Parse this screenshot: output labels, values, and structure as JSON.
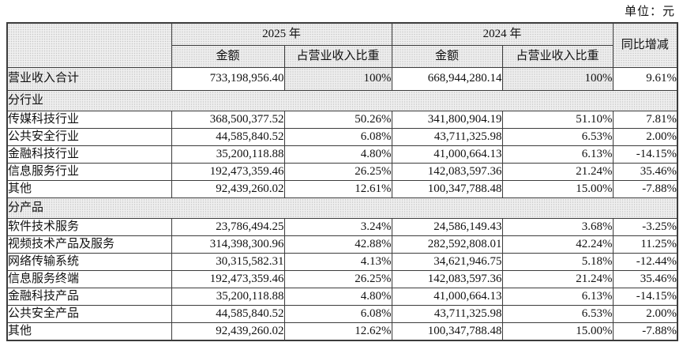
{
  "unit_label": "单位：元",
  "colors": {
    "header_fill": "#e3e3e3",
    "border": "#3c3c3c",
    "background": "#ffffff",
    "text": "#111111"
  },
  "table": {
    "header": {
      "y2025": "2025 年",
      "y2024": "2024 年",
      "yoy": "同比增减",
      "amount": "金额",
      "ratio": "占营业收入比重"
    },
    "rows": [
      {
        "type": "total",
        "label": "营业收入合计",
        "a2025": "733,198,956.40",
        "r2025": "100%",
        "a2024": "668,944,280.14",
        "r2024": "100%",
        "yoy": "9.61%"
      },
      {
        "type": "section",
        "label": "分行业"
      },
      {
        "type": "data",
        "label": "传媒科技行业",
        "a2025": "368,500,377.52",
        "r2025": "50.26%",
        "a2024": "341,800,904.19",
        "r2024": "51.10%",
        "yoy": "7.81%"
      },
      {
        "type": "data",
        "label": "公共安全行业",
        "a2025": "44,585,840.52",
        "r2025": "6.08%",
        "a2024": "43,711,325.98",
        "r2024": "6.53%",
        "yoy": "2.00%"
      },
      {
        "type": "data",
        "label": "金融科技行业",
        "a2025": "35,200,118.88",
        "r2025": "4.80%",
        "a2024": "41,000,664.13",
        "r2024": "6.13%",
        "yoy": "-14.15%"
      },
      {
        "type": "data",
        "label": "信息服务行业",
        "a2025": "192,473,359.46",
        "r2025": "26.25%",
        "a2024": "142,083,597.36",
        "r2024": "21.24%",
        "yoy": "35.46%"
      },
      {
        "type": "data",
        "label": "其他",
        "a2025": "92,439,260.02",
        "r2025": "12.61%",
        "a2024": "100,347,788.48",
        "r2024": "15.00%",
        "yoy": "-7.88%"
      },
      {
        "type": "section",
        "label": "分产品"
      },
      {
        "type": "data",
        "label": "软件技术服务",
        "a2025": "23,786,494.25",
        "r2025": "3.24%",
        "a2024": "24,586,149.43",
        "r2024": "3.68%",
        "yoy": "-3.25%"
      },
      {
        "type": "data",
        "label": "视频技术产品及服务",
        "a2025": "314,398,300.96",
        "r2025": "42.88%",
        "a2024": "282,592,808.01",
        "r2024": "42.24%",
        "yoy": "11.25%"
      },
      {
        "type": "data",
        "label": "网络传输系统",
        "a2025": "30,315,582.31",
        "r2025": "4.13%",
        "a2024": "34,621,946.75",
        "r2024": "5.18%",
        "yoy": "-12.44%"
      },
      {
        "type": "data",
        "label": "信息服务终端",
        "a2025": "192,473,359.46",
        "r2025": "26.25%",
        "a2024": "142,083,597.36",
        "r2024": "21.24%",
        "yoy": "35.46%"
      },
      {
        "type": "data",
        "label": "金融科技产品",
        "a2025": "35,200,118.88",
        "r2025": "4.80%",
        "a2024": "41,000,664.13",
        "r2024": "6.13%",
        "yoy": "-14.15%"
      },
      {
        "type": "data",
        "label": "公共安全产品",
        "a2025": "44,585,840.52",
        "r2025": "6.08%",
        "a2024": "43,711,325.98",
        "r2024": "6.53%",
        "yoy": "2.00%"
      },
      {
        "type": "data",
        "label": "其他",
        "a2025": "92,439,260.02",
        "r2025": "12.62%",
        "a2024": "100,347,788.48",
        "r2024": "15.00%",
        "yoy": "-7.88%"
      }
    ]
  }
}
